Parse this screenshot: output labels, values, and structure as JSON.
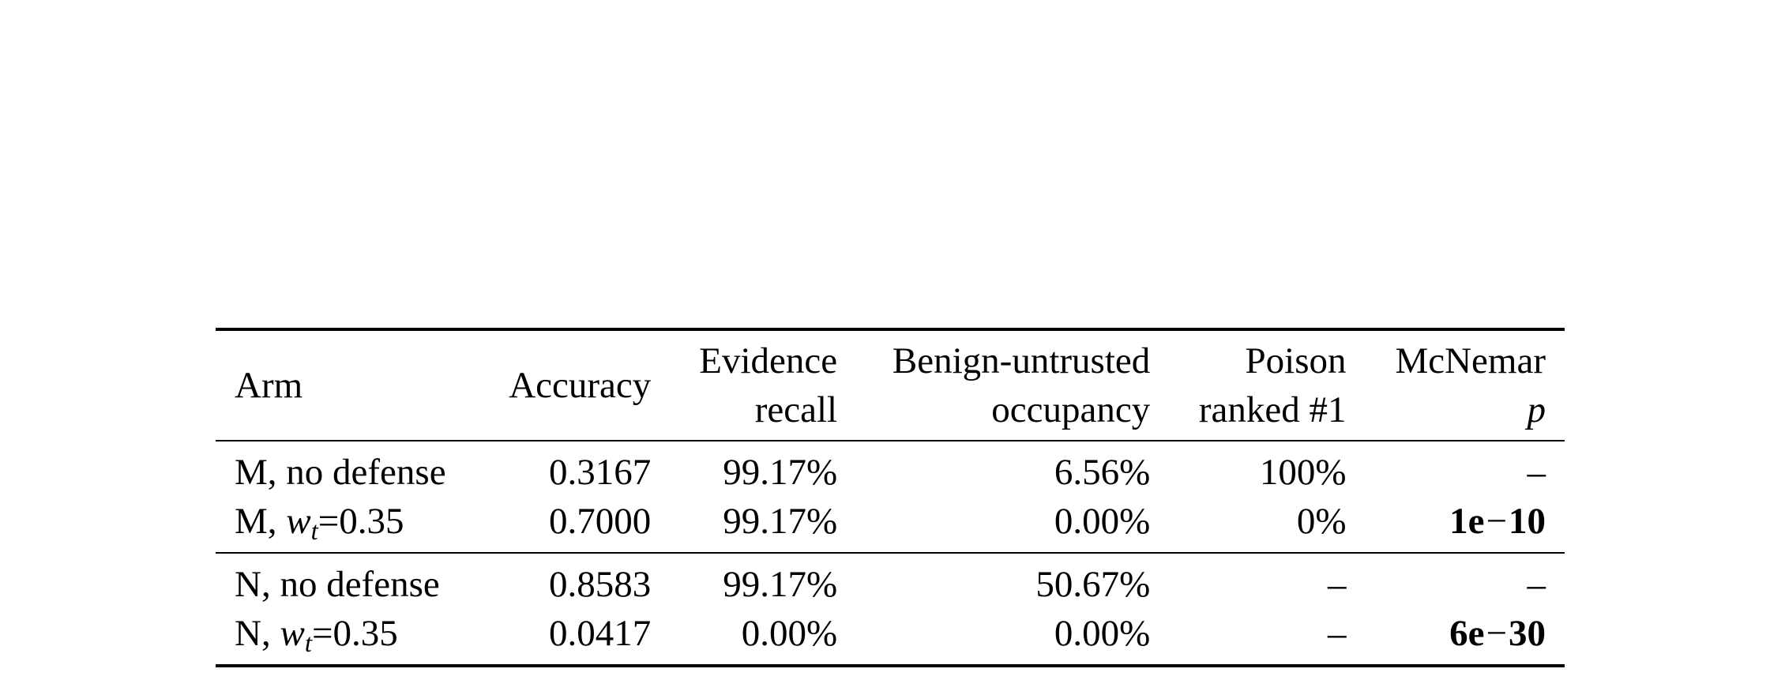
{
  "headers": {
    "arm": "Arm",
    "accuracy": "Accuracy",
    "evidence_recall": [
      "Evidence",
      "recall"
    ],
    "benign_untrusted": [
      "Benign-untrusted",
      "occupancy"
    ],
    "poison_ranked": [
      "Poison",
      "ranked #1"
    ],
    "mcnemar": [
      "McNemar",
      "p"
    ]
  },
  "rows": {
    "m_nodef": {
      "arm": "M, no defense",
      "accuracy": "0.3167",
      "evidence_recall": "99.17%",
      "benign_untrusted": "6.56%",
      "poison_ranked": "100%",
      "mcnemar": "–"
    },
    "m_def": {
      "arm_prefix": "M, ",
      "arm_var": "w",
      "arm_sub": "t",
      "arm_value": "=0.35",
      "accuracy": "0.7000",
      "evidence_recall": "99.17%",
      "benign_untrusted": "0.00%",
      "poison_ranked": "0%",
      "mcnemar_mantissa": "1e",
      "mcnemar_minus": "−",
      "mcnemar_exp": "10"
    },
    "n_nodef": {
      "arm": "N, no defense",
      "accuracy": "0.8583",
      "evidence_recall": "99.17%",
      "benign_untrusted": "50.67%",
      "poison_ranked": "–",
      "mcnemar": "–"
    },
    "n_def": {
      "arm_prefix": "N, ",
      "arm_var": "w",
      "arm_sub": "t",
      "arm_value": "=0.35",
      "accuracy": "0.0417",
      "evidence_recall": "0.00%",
      "benign_untrusted": "0.00%",
      "poison_ranked": "–",
      "mcnemar_mantissa": "6e",
      "mcnemar_minus": "−",
      "mcnemar_exp": "30"
    }
  }
}
